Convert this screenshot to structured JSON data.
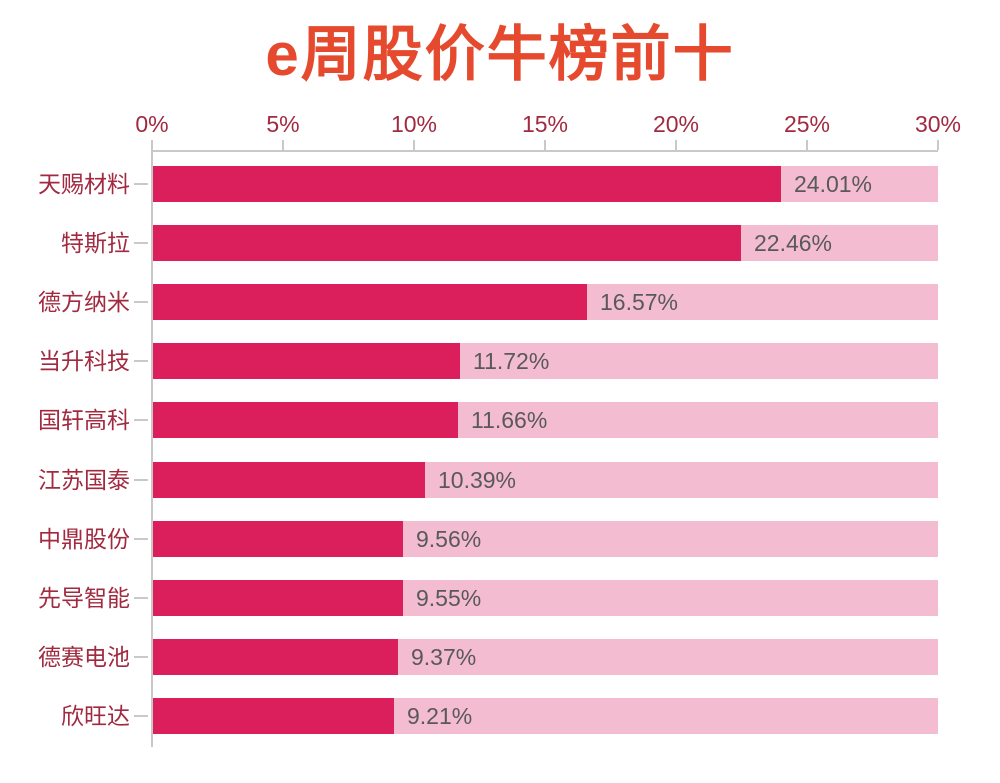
{
  "title": "e周股价牛榜前十",
  "chart_data": {
    "type": "bar",
    "orientation": "horizontal",
    "title": "e周股价牛榜前十",
    "xlabel": "",
    "ylabel": "",
    "xlim": [
      0,
      30
    ],
    "x_tick_labels": [
      "0%",
      "5%",
      "10%",
      "15%",
      "20%",
      "25%",
      "30%"
    ],
    "x_tick_values": [
      0,
      5,
      10,
      15,
      20,
      25,
      30
    ],
    "grid": false,
    "legend_position": "none",
    "axis_position": "top",
    "categories": [
      "天赐材料",
      "特斯拉",
      "德方纳米",
      "当升科技",
      "国轩高科",
      "江苏国泰",
      "中鼎股份",
      "先导智能",
      "德赛电池",
      "欣旺达"
    ],
    "values": [
      24.01,
      22.46,
      16.57,
      11.72,
      11.66,
      10.39,
      9.56,
      9.55,
      9.37,
      9.21
    ],
    "value_labels": [
      "24.01%",
      "22.46%",
      "16.57%",
      "11.72%",
      "11.66%",
      "10.39%",
      "9.56%",
      "9.55%",
      "9.37%",
      "9.21%"
    ],
    "colors": {
      "title": "#E64A2E",
      "bar": "#DB1E5C",
      "track": "#F4BCD0",
      "axis_text": "#A12A40",
      "category_text": "#A12A40",
      "value_text": "#595959",
      "axis_line": "#C9C9C9",
      "background": "#FFFFFF"
    }
  }
}
